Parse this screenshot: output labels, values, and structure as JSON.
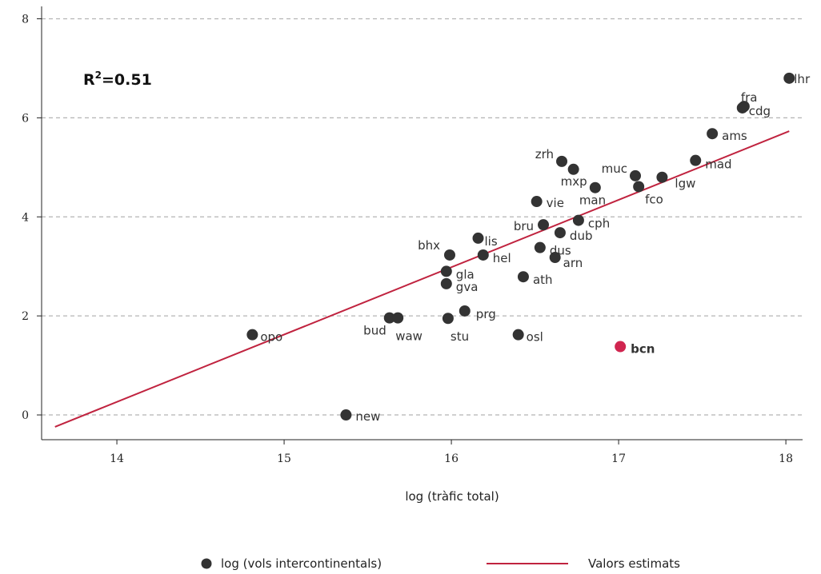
{
  "chart_data": {
    "type": "scatter",
    "xlabel": "log (tràfic total)",
    "ylabel": "",
    "xlim": [
      13.55,
      18.1
    ],
    "ylim": [
      -0.5,
      8.25
    ],
    "xticks": [
      14,
      15,
      16,
      17,
      18
    ],
    "yticks": [
      0,
      2,
      4,
      6,
      8
    ],
    "grid": "horizontal-dashed",
    "annotation": {
      "base": "R",
      "sup": "2",
      "rest": "=0.51"
    },
    "colors": {
      "points": "#333333",
      "highlight": "#d0254f",
      "fit": "#c0233f",
      "grid": "#b4b4b4"
    },
    "points": [
      {
        "label": "lhr",
        "x": 18.02,
        "y": 6.8
      },
      {
        "label": "fra",
        "x": 17.75,
        "y": 6.23
      },
      {
        "label": "cdg",
        "x": 17.74,
        "y": 6.2
      },
      {
        "label": "ams",
        "x": 17.56,
        "y": 5.68
      },
      {
        "label": "mad",
        "x": 17.46,
        "y": 5.14
      },
      {
        "label": "zrh",
        "x": 16.66,
        "y": 5.12
      },
      {
        "label": "mxp",
        "x": 16.73,
        "y": 4.96
      },
      {
        "label": "muc",
        "x": 17.1,
        "y": 4.83
      },
      {
        "label": "lgw",
        "x": 17.26,
        "y": 4.8
      },
      {
        "label": "fco",
        "x": 17.12,
        "y": 4.61
      },
      {
        "label": "man",
        "x": 16.86,
        "y": 4.59
      },
      {
        "label": "vie",
        "x": 16.51,
        "y": 4.31
      },
      {
        "label": "cph",
        "x": 16.76,
        "y": 3.93
      },
      {
        "label": "bru",
        "x": 16.55,
        "y": 3.84
      },
      {
        "label": "dub",
        "x": 16.65,
        "y": 3.68
      },
      {
        "label": "lis",
        "x": 16.16,
        "y": 3.57
      },
      {
        "label": "dus",
        "x": 16.53,
        "y": 3.38
      },
      {
        "label": "bhx",
        "x": 15.99,
        "y": 3.23
      },
      {
        "label": "hel",
        "x": 16.19,
        "y": 3.23
      },
      {
        "label": "arn",
        "x": 16.62,
        "y": 3.18
      },
      {
        "label": "gla",
        "x": 15.97,
        "y": 2.9
      },
      {
        "label": "ath",
        "x": 16.43,
        "y": 2.79
      },
      {
        "label": "gva",
        "x": 15.97,
        "y": 2.65
      },
      {
        "label": "prg",
        "x": 16.08,
        "y": 2.1
      },
      {
        "label": "bud",
        "x": 15.63,
        "y": 1.96
      },
      {
        "label": "waw",
        "x": 15.68,
        "y": 1.96
      },
      {
        "label": "stu",
        "x": 15.98,
        "y": 1.95
      },
      {
        "label": "opo",
        "x": 14.81,
        "y": 1.62
      },
      {
        "label": "osl",
        "x": 16.4,
        "y": 1.62
      },
      {
        "label": "bcn",
        "x": 17.01,
        "y": 1.38,
        "highlight": true
      },
      {
        "label": "new",
        "x": 15.37,
        "y": 0.0
      }
    ],
    "fit_line": {
      "x": [
        13.63,
        18.02
      ],
      "y": [
        -0.24,
        5.73
      ]
    },
    "legend": {
      "position": "bottom",
      "entries": [
        {
          "label": "log (vols intercontinentals)",
          "kind": "marker"
        },
        {
          "label": "Valors estimats",
          "kind": "line"
        }
      ]
    }
  }
}
